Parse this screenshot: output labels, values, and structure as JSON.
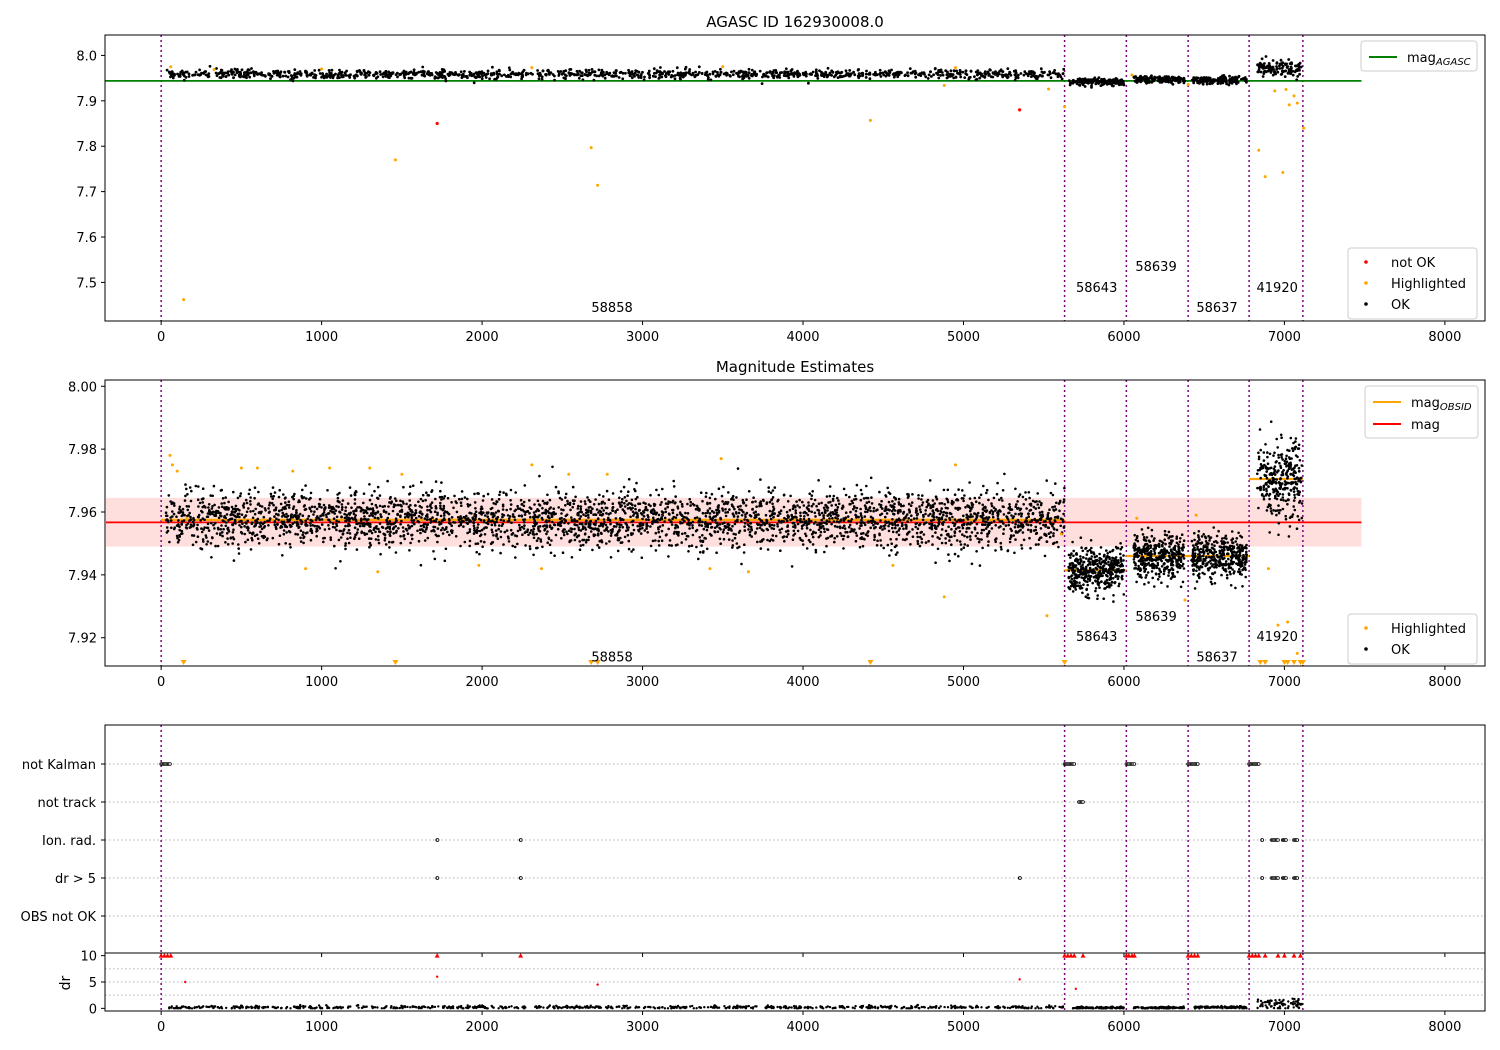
{
  "chart_data": [
    {
      "type": "scatter",
      "title": "AGASC ID 162930008.0",
      "xlim": [
        -350,
        8250
      ],
      "ylim": [
        7.415,
        8.045
      ],
      "x_ticks": [
        0,
        1000,
        2000,
        3000,
        4000,
        5000,
        6000,
        7000,
        8000
      ],
      "y_ticks": [
        7.5,
        7.6,
        7.7,
        7.8,
        7.9,
        8.0
      ],
      "legend_lines": {
        "position": "top-right",
        "items": [
          {
            "base": "mag",
            "sub": "AGASC",
            "color": "#008000"
          }
        ]
      },
      "legend_points": {
        "position": "lower-right",
        "items": [
          {
            "label": "not OK",
            "color": "#ff0000"
          },
          {
            "label": "Highlighted",
            "color": "#ffa500"
          },
          {
            "label": "OK",
            "color": "#000000"
          }
        ]
      },
      "mag_line": {
        "name": "mag_AGASC",
        "color": "#008000",
        "value": 7.944,
        "x_range": [
          -350,
          7480
        ]
      },
      "obs_boundaries": [
        0,
        5630,
        6015,
        6400,
        6780,
        7115
      ],
      "obsid_labels": [
        {
          "text": "58858",
          "x": 2810,
          "y": 7.435
        },
        {
          "text": "58643",
          "x": 5830,
          "y": 7.479
        },
        {
          "text": "58639",
          "x": 6200,
          "y": 7.525
        },
        {
          "text": "58637",
          "x": 6580,
          "y": 7.435
        },
        {
          "text": "41920",
          "x": 6955,
          "y": 7.479
        }
      ],
      "ok_segments": [
        {
          "x": [
            30,
            5630
          ],
          "mean": 7.959,
          "sd": 0.005,
          "n": 1200
        },
        {
          "x": [
            5655,
            6000
          ],
          "mean": 7.942,
          "sd": 0.004,
          "n": 160
        },
        {
          "x": [
            6060,
            6380
          ],
          "mean": 7.947,
          "sd": 0.004,
          "n": 140
        },
        {
          "x": [
            6420,
            6765
          ],
          "mean": 7.946,
          "sd": 0.004,
          "n": 150
        },
        {
          "x": [
            6830,
            7110
          ],
          "mean": 7.972,
          "sd": 0.008,
          "n": 120
        }
      ],
      "highlighted_points": [
        {
          "x": 140,
          "y": 7.462
        },
        {
          "x": 1460,
          "y": 7.77
        },
        {
          "x": 2680,
          "y": 7.797
        },
        {
          "x": 2720,
          "y": 7.714
        },
        {
          "x": 4420,
          "y": 7.857
        },
        {
          "x": 4880,
          "y": 7.934
        },
        {
          "x": 5530,
          "y": 7.926
        },
        {
          "x": 5630,
          "y": 7.887
        },
        {
          "x": 6050,
          "y": 7.957
        },
        {
          "x": 6400,
          "y": 7.936
        },
        {
          "x": 6840,
          "y": 7.791
        },
        {
          "x": 6880,
          "y": 7.733
        },
        {
          "x": 6940,
          "y": 7.922
        },
        {
          "x": 6990,
          "y": 7.742
        },
        {
          "x": 7010,
          "y": 7.925
        },
        {
          "x": 7030,
          "y": 7.891
        },
        {
          "x": 7060,
          "y": 7.911
        },
        {
          "x": 7080,
          "y": 7.895
        },
        {
          "x": 7120,
          "y": 7.84
        },
        {
          "x": 60,
          "y": 7.975
        },
        {
          "x": 330,
          "y": 7.969
        },
        {
          "x": 1000,
          "y": 7.97
        },
        {
          "x": 2310,
          "y": 7.973
        },
        {
          "x": 3500,
          "y": 7.975
        },
        {
          "x": 4950,
          "y": 7.973
        }
      ],
      "not_ok_points": [
        {
          "x": 1720,
          "y": 7.85
        },
        {
          "x": 5350,
          "y": 7.88
        }
      ]
    },
    {
      "type": "scatter",
      "title": "Magnitude Estimates",
      "xlim": [
        -350,
        8250
      ],
      "ylim": [
        7.911,
        8.002
      ],
      "x_ticks": [
        0,
        1000,
        2000,
        3000,
        4000,
        5000,
        6000,
        7000,
        8000
      ],
      "y_ticks": [
        7.92,
        7.94,
        7.96,
        7.98,
        8.0
      ],
      "legend_lines": {
        "position": "top-right",
        "items": [
          {
            "base": "mag",
            "sub": "OBSID",
            "color": "#ffa500"
          },
          {
            "base": "mag",
            "sub": "",
            "color": "#ff0000"
          }
        ]
      },
      "legend_points": {
        "position": "lower-right",
        "items": [
          {
            "label": "Highlighted",
            "color": "#ffa500"
          },
          {
            "label": "OK",
            "color": "#000000"
          }
        ]
      },
      "mag_line": {
        "name": "mag",
        "color": "#ff0000",
        "value": 7.9567,
        "x_range": [
          -350,
          7480
        ]
      },
      "mag_band": {
        "low": 7.949,
        "high": 7.9645,
        "color": "#ffdede"
      },
      "obsid_mags": [
        {
          "x": [
            0,
            5630
          ],
          "value": 7.9575
        },
        {
          "x": [
            5630,
            6015
          ],
          "value": 7.9415
        },
        {
          "x": [
            6015,
            6400
          ],
          "value": 7.946
        },
        {
          "x": [
            6400,
            6780
          ],
          "value": 7.946
        },
        {
          "x": [
            6780,
            7115
          ],
          "value": 7.9705
        }
      ],
      "obs_boundaries": [
        0,
        5630,
        6015,
        6400,
        6780,
        7115
      ],
      "obsid_labels": [
        {
          "text": "58858",
          "x": 2810,
          "y": 7.9125
        },
        {
          "text": "58643",
          "x": 5830,
          "y": 7.9189
        },
        {
          "text": "58639",
          "x": 6200,
          "y": 7.9253
        },
        {
          "text": "58637",
          "x": 6580,
          "y": 7.9125
        },
        {
          "text": "41920",
          "x": 6955,
          "y": 7.9189
        }
      ],
      "ok_segments": [
        {
          "x": [
            30,
            5630
          ],
          "mean": 7.9575,
          "sd": 0.0045,
          "n": 3400
        },
        {
          "x": [
            5655,
            6000
          ],
          "mean": 7.9415,
          "sd": 0.0035,
          "n": 420
        },
        {
          "x": [
            6060,
            6380
          ],
          "mean": 7.946,
          "sd": 0.0033,
          "n": 380
        },
        {
          "x": [
            6420,
            6765
          ],
          "mean": 7.946,
          "sd": 0.0033,
          "n": 400
        },
        {
          "x": [
            6830,
            7110
          ],
          "mean": 7.9705,
          "sd": 0.0065,
          "n": 300
        }
      ],
      "highlighted_points": [
        {
          "x": 55,
          "y": 7.978
        },
        {
          "x": 70,
          "y": 7.975
        },
        {
          "x": 100,
          "y": 7.973
        },
        {
          "x": 160,
          "y": 7.958
        },
        {
          "x": 500,
          "y": 7.974
        },
        {
          "x": 600,
          "y": 7.974
        },
        {
          "x": 820,
          "y": 7.973
        },
        {
          "x": 900,
          "y": 7.942
        },
        {
          "x": 1050,
          "y": 7.974
        },
        {
          "x": 1300,
          "y": 7.974
        },
        {
          "x": 1350,
          "y": 7.941
        },
        {
          "x": 1500,
          "y": 7.972
        },
        {
          "x": 1980,
          "y": 7.943
        },
        {
          "x": 2310,
          "y": 7.975
        },
        {
          "x": 2370,
          "y": 7.942
        },
        {
          "x": 2540,
          "y": 7.972
        },
        {
          "x": 2780,
          "y": 7.972
        },
        {
          "x": 3420,
          "y": 7.942
        },
        {
          "x": 3490,
          "y": 7.977
        },
        {
          "x": 3660,
          "y": 7.941
        },
        {
          "x": 4560,
          "y": 7.943
        },
        {
          "x": 4880,
          "y": 7.933
        },
        {
          "x": 4950,
          "y": 7.975
        },
        {
          "x": 5520,
          "y": 7.927
        },
        {
          "x": 5610,
          "y": 7.953
        },
        {
          "x": 6080,
          "y": 7.958
        },
        {
          "x": 6380,
          "y": 7.932
        },
        {
          "x": 6450,
          "y": 7.959
        },
        {
          "x": 6900,
          "y": 7.942
        },
        {
          "x": 6960,
          "y": 7.924
        },
        {
          "x": 7020,
          "y": 7.925
        },
        {
          "x": 7080,
          "y": 7.915
        }
      ],
      "offscale_markers": [
        140,
        1460,
        2680,
        2720,
        4420,
        5630,
        6850,
        6880,
        7000,
        7020,
        7060,
        7100,
        7115
      ]
    },
    {
      "type": "scatter",
      "title": "",
      "xlim": [
        -350,
        8250
      ],
      "x_ticks": [
        0,
        1000,
        2000,
        3000,
        4000,
        5000,
        6000,
        7000,
        8000
      ],
      "flag_rows": [
        "not Kalman",
        "not track",
        "Ion. rad.",
        "dr > 5",
        "OBS not OK"
      ],
      "flag_points": [
        {
          "row": "not Kalman",
          "x": [
            [
              0,
              55
            ],
            [
              5630,
              5690
            ],
            [
              6015,
              6065
            ],
            [
              6400,
              6460
            ],
            [
              6780,
              6840
            ]
          ]
        },
        {
          "row": "not track",
          "x": [
            [
              5720,
              5745
            ]
          ]
        },
        {
          "row": "Ion. rad.",
          "x": [
            [
              1720,
              1722
            ],
            [
              2240,
              2242
            ],
            [
              6860,
              6862
            ],
            [
              6920,
              6960
            ],
            [
              6990,
              7010
            ],
            [
              7060,
              7080
            ]
          ]
        },
        {
          "row": "dr > 5",
          "x": [
            [
              1720,
              1722
            ],
            [
              2240,
              2242
            ],
            [
              5350,
              5352
            ],
            [
              6860,
              6862
            ],
            [
              6920,
              6960
            ],
            [
              6990,
              7010
            ],
            [
              7060,
              7080
            ]
          ]
        },
        {
          "row": "OBS not OK",
          "x": []
        }
      ],
      "obs_boundaries": [
        0,
        5630,
        6015,
        6400,
        6780,
        7115
      ]
    },
    {
      "type": "scatter",
      "title": "",
      "ylabel": "dr",
      "xlim": [
        -350,
        8250
      ],
      "ylim": [
        -0.5,
        10.5
      ],
      "x_ticks": [
        0,
        1000,
        2000,
        3000,
        4000,
        5000,
        6000,
        7000,
        8000
      ],
      "y_ticks": [
        0,
        5,
        10
      ],
      "ok_segments": [
        {
          "x": [
            50,
            5630
          ],
          "mean": 0.2,
          "sd": 0.15,
          "n": 700
        },
        {
          "x": [
            5680,
            6000
          ],
          "mean": 0.1,
          "sd": 0.1,
          "n": 120
        },
        {
          "x": [
            6060,
            6380
          ],
          "mean": 0.1,
          "sd": 0.1,
          "n": 120
        },
        {
          "x": [
            6440,
            6765
          ],
          "mean": 0.2,
          "sd": 0.1,
          "n": 120
        },
        {
          "x": [
            6830,
            7110
          ],
          "mean": 0.9,
          "sd": 0.5,
          "n": 80
        }
      ],
      "red_points": [
        {
          "x": 150,
          "y": 5.0
        },
        {
          "x": 1720,
          "y": 6.0
        },
        {
          "x": 2720,
          "y": 4.5
        },
        {
          "x": 5350,
          "y": 5.5
        },
        {
          "x": 5700,
          "y": 3.7
        }
      ],
      "red_clipped": [
        0,
        20,
        40,
        60,
        1720,
        2240,
        5630,
        5650,
        5670,
        5690,
        5745,
        6015,
        6030,
        6050,
        6065,
        6400,
        6420,
        6440,
        6460,
        6780,
        6800,
        6820,
        6840,
        6880,
        6960,
        7000,
        7060,
        7100
      ],
      "obs_boundaries": [
        0,
        5630,
        6015,
        6400,
        6780,
        7115
      ]
    }
  ]
}
